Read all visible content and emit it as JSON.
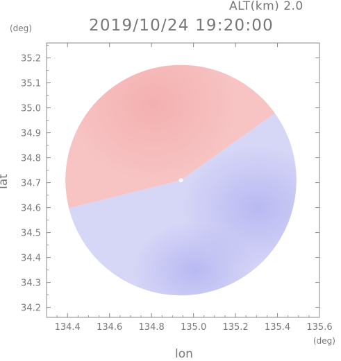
{
  "header": {
    "altitude": "ALT(km) 2.0",
    "timestamp": "2019/10/24 19:20:00"
  },
  "axes": {
    "x_unit": "(deg)",
    "y_unit": "(deg)"
  },
  "chart_data": {
    "type": "heatmap",
    "title": "2019/10/24 19:20:00",
    "xlabel": "lon",
    "ylabel": "lat",
    "xlim": [
      134.3,
      135.6
    ],
    "ylim": [
      34.16,
      35.26
    ],
    "x_ticks": [
      "134.4",
      "134.6",
      "134.8",
      "135.0",
      "135.2",
      "135.4",
      "135.6"
    ],
    "y_ticks": [
      "34.2",
      "34.3",
      "34.4",
      "34.5",
      "34.6",
      "34.7",
      "34.8",
      "34.9",
      "35.0",
      "35.1",
      "35.2"
    ],
    "radar_center": [
      134.94,
      34.71
    ],
    "radar_radius_deg": 0.55,
    "colors": {
      "positive": "#f5a5a5",
      "negative": "#a0a0ee",
      "zero": "#f4f4ff"
    },
    "altitude_km": 2.0
  }
}
